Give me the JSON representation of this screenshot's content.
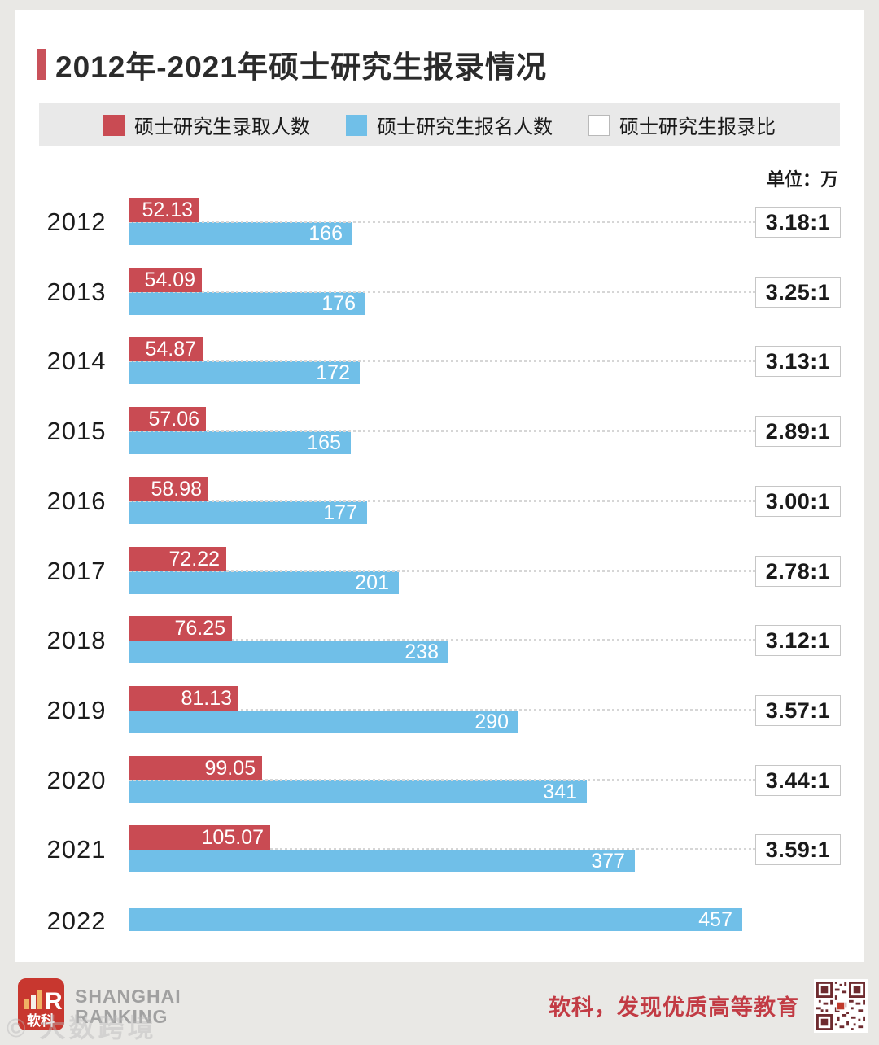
{
  "title": {
    "text": "2012年-2021年硕士研究生报录情况"
  },
  "legend": [
    {
      "label": "硕士研究生录取人数",
      "color": "#c94b53"
    },
    {
      "label": "硕士研究生报名人数",
      "color": "#70bfe8"
    },
    {
      "label": "硕士研究生报录比",
      "color": "#ffffff"
    }
  ],
  "unit_label": "单位：万",
  "chart_data": {
    "type": "bar",
    "orientation": "horizontal",
    "unit": "万",
    "title": "2012年-2021年硕士研究生报录情况",
    "categories": [
      "2012",
      "2013",
      "2014",
      "2015",
      "2016",
      "2017",
      "2018",
      "2019",
      "2020",
      "2021",
      "2022"
    ],
    "series": [
      {
        "name": "硕士研究生录取人数",
        "color": "#c94b53",
        "values": [
          52.13,
          54.09,
          54.87,
          57.06,
          58.98,
          72.22,
          76.25,
          81.13,
          99.05,
          105.07,
          null
        ]
      },
      {
        "name": "硕士研究生报名人数",
        "color": "#70bfe8",
        "values": [
          166,
          176,
          172,
          165,
          177,
          201,
          238,
          290,
          341,
          377,
          457
        ]
      },
      {
        "name": "硕士研究生报录比",
        "values": [
          "3.18:1",
          "3.25:1",
          "3.13:1",
          "2.89:1",
          "3.00:1",
          "2.78:1",
          "3.12:1",
          "3.57:1",
          "3.44:1",
          "3.59:1",
          null
        ]
      }
    ],
    "xmax": 457,
    "legend_position": "top",
    "grid": false
  },
  "footer": {
    "logo_text": "软科",
    "logo_letter": "R",
    "brand_line1": "SHANGHAI",
    "brand_line2": "RANKING",
    "slogan": "软科，发现优质高等教育",
    "watermark": "© 大数跨境"
  },
  "colors": {
    "admitted_bar": "#c94b53",
    "applicants_bar": "#70bfe8",
    "accent": "#c9515a",
    "slogan_red": "#c23b44",
    "page_bg": "#e9e8e5",
    "legend_bg": "#e9e9e9"
  }
}
